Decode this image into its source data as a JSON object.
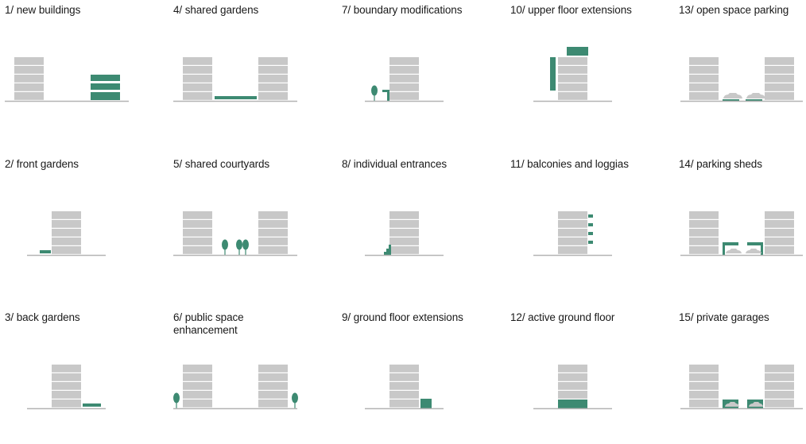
{
  "colors": {
    "building": "#c8c8c8",
    "building_line": "#ffffff",
    "ground": "#b4b4b4",
    "accent": "#3d8a72"
  },
  "items": [
    {
      "id": "1",
      "label": "1/ new buildings"
    },
    {
      "id": "4",
      "label": "4/ shared gardens"
    },
    {
      "id": "7",
      "label": "7/ boundary modifications"
    },
    {
      "id": "10",
      "label": "10/ upper floor extensions"
    },
    {
      "id": "13",
      "label": "13/ open space parking"
    },
    {
      "id": "2",
      "label": "2/ front gardens"
    },
    {
      "id": "5",
      "label": "5/ shared courtyards"
    },
    {
      "id": "8",
      "label": "8/ individual entrances"
    },
    {
      "id": "11",
      "label": "11/ balconies and loggias"
    },
    {
      "id": "14",
      "label": "14/ parking sheds"
    },
    {
      "id": "3",
      "label": "3/ back gardens"
    },
    {
      "id": "6",
      "label": "6/ public space enhancement"
    },
    {
      "id": "9",
      "label": "9/ ground floor extensions"
    },
    {
      "id": "12",
      "label": "12/ active ground floor"
    },
    {
      "id": "15",
      "label": "15/ private garages"
    }
  ]
}
